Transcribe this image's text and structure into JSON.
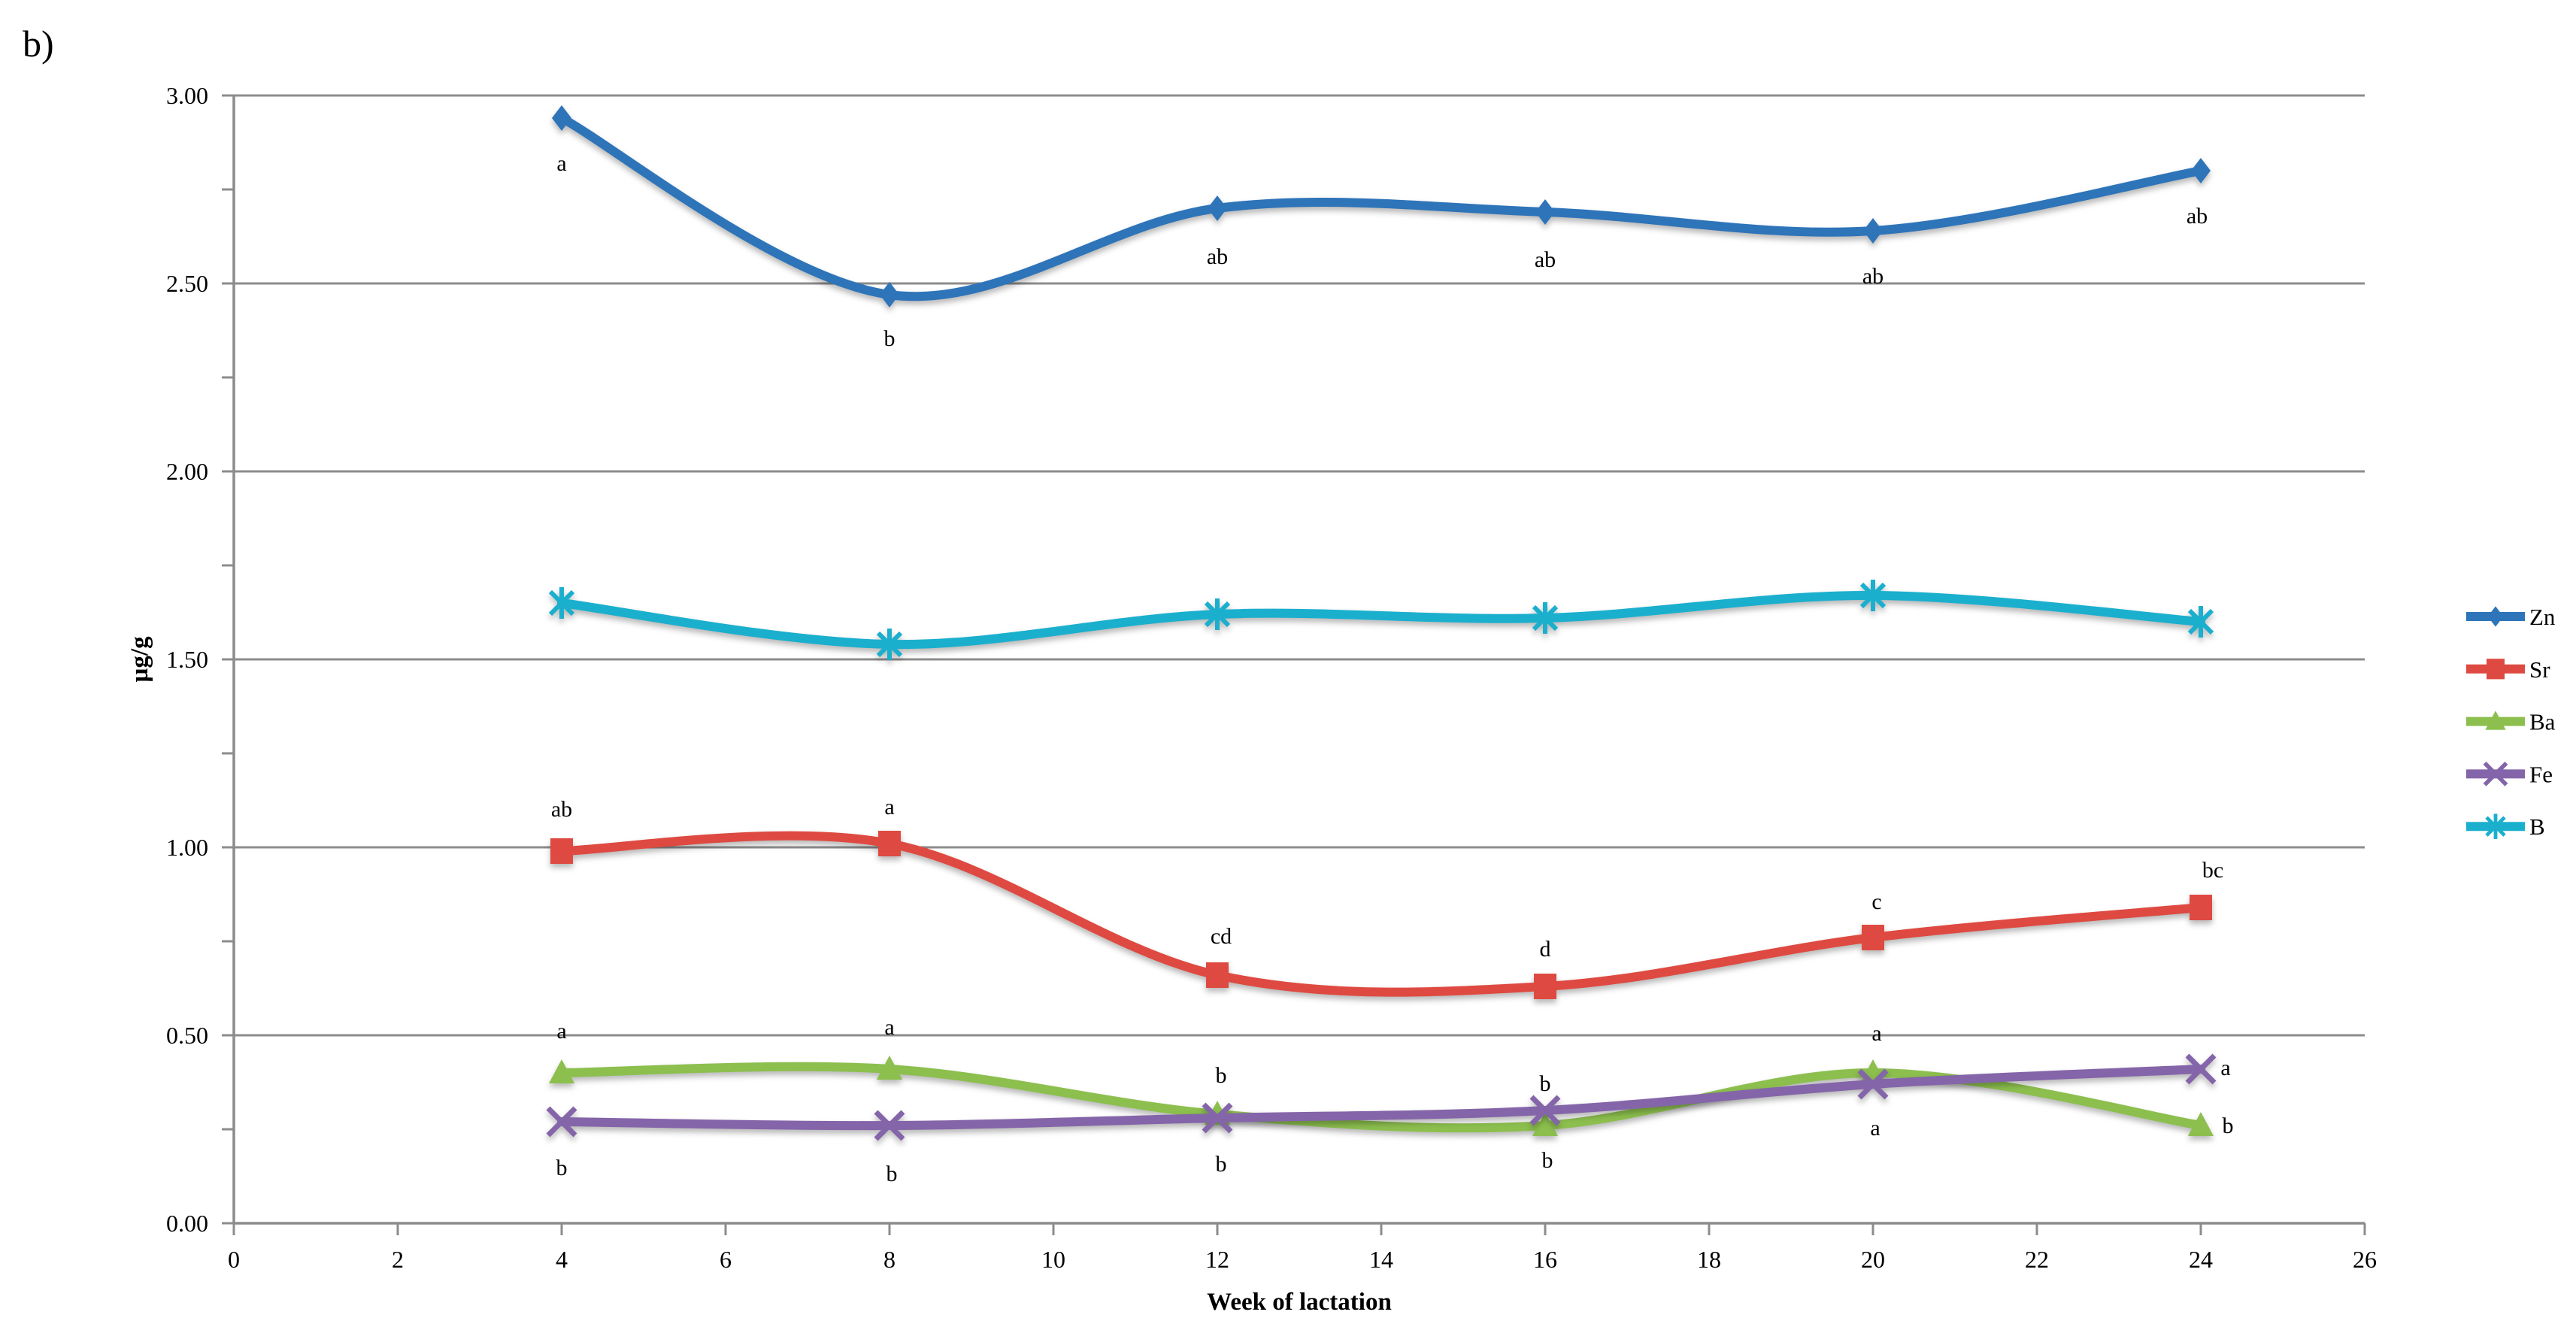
{
  "panel_label": "b)",
  "colors": {
    "grid": "#8C8C8C",
    "axis": "#8C8C8C",
    "text": "#000000"
  },
  "chart_data": {
    "type": "line",
    "title": "b)",
    "xlabel": "Week of lactation",
    "ylabel": "µg/g",
    "xlim": [
      0,
      26
    ],
    "ylim": [
      0.0,
      3.0
    ],
    "x_tick_step": 2,
    "y_label_step": 0.5,
    "y_minor_tick_step": 0.25,
    "y_tick_decimals": 2,
    "grid": "horizontal-major",
    "legend_position": "right-middle",
    "x": [
      4,
      8,
      12,
      16,
      20,
      24
    ],
    "series": [
      {
        "name": "Zn",
        "color": "#2E74B9",
        "marker": "diamond",
        "values": [
          2.94,
          2.47,
          2.7,
          2.69,
          2.64,
          2.8
        ],
        "point_labels": [
          {
            "text": "a",
            "dx": 0,
            "dy": 60
          },
          {
            "text": "b",
            "dx": 0,
            "dy": 58
          },
          {
            "text": "ab",
            "dx": 0,
            "dy": 64
          },
          {
            "text": "ab",
            "dx": 0,
            "dy": 63
          },
          {
            "text": "ab",
            "dx": 0,
            "dy": 60
          },
          {
            "text": "ab",
            "dx": -5,
            "dy": 60
          }
        ]
      },
      {
        "name": "Sr",
        "color": "#DE4A41",
        "marker": "square",
        "values": [
          0.99,
          1.01,
          0.66,
          0.63,
          0.76,
          0.84
        ],
        "point_labels": [
          {
            "text": "ab",
            "dx": 0,
            "dy": -56
          },
          {
            "text": "a",
            "dx": 0,
            "dy": -49
          },
          {
            "text": "cd",
            "dx": 5,
            "dy": -52
          },
          {
            "text": "d",
            "dx": 0,
            "dy": -50
          },
          {
            "text": "c",
            "dx": 5,
            "dy": -48
          },
          {
            "text": "bc",
            "dx": 16,
            "dy": -50
          }
        ]
      },
      {
        "name": "Ba",
        "color": "#8CBF4E",
        "marker": "triangle",
        "values": [
          0.4,
          0.41,
          0.29,
          0.26,
          0.4,
          0.26
        ],
        "point_labels": [
          {
            "text": "a",
            "dx": 0,
            "dy": -56
          },
          {
            "text": "a",
            "dx": 0,
            "dy": -56
          },
          {
            "text": "b",
            "dx": 5,
            "dy": -52
          },
          {
            "text": "b",
            "dx": 3,
            "dy": 46
          },
          {
            "text": "a",
            "dx": 5,
            "dy": -53
          },
          {
            "text": "b",
            "dx": 36,
            "dy": 0
          }
        ]
      },
      {
        "name": "Fe",
        "color": "#8465A9",
        "marker": "x",
        "values": [
          0.27,
          0.26,
          0.28,
          0.3,
          0.37,
          0.41
        ],
        "point_labels": [
          {
            "text": "b",
            "dx": 0,
            "dy": 61
          },
          {
            "text": "b",
            "dx": 3,
            "dy": 64
          },
          {
            "text": "b",
            "dx": 5,
            "dy": 61
          },
          {
            "text": "b",
            "dx": 0,
            "dy": -36
          },
          {
            "text": "a",
            "dx": 3,
            "dy": 58
          },
          {
            "text": "a",
            "dx": 33,
            "dy": -2
          }
        ]
      },
      {
        "name": "B",
        "color": "#1BAFCE",
        "marker": "star6",
        "values": [
          1.65,
          1.54,
          1.62,
          1.61,
          1.67,
          1.6
        ],
        "point_labels": [
          null,
          null,
          null,
          null,
          null,
          null
        ]
      }
    ]
  }
}
